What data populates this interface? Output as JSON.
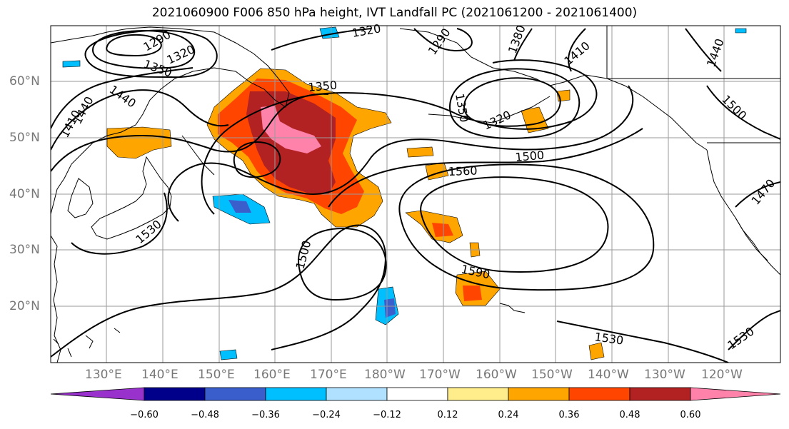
{
  "title": "2021060900 F006 850 hPa height, IVT Landfall PC (2021061200 - 2021061400)",
  "lat_labels": [
    "60°N",
    "50°N",
    "40°N",
    "30°N",
    "20°N"
  ],
  "lon_labels": [
    "130°E",
    "140°E",
    "150°E",
    "160°E",
    "170°E",
    "180°W",
    "170°W",
    "160°W",
    "150°W",
    "140°W",
    "130°W",
    "120°W"
  ],
  "contour_labels": [
    "1290",
    "1320",
    "1350",
    "1440",
    "1410",
    "1440",
    "1350",
    "1320",
    "1290",
    "1380",
    "1410",
    "1440",
    "1350",
    "1320",
    "1500",
    "1500",
    "1560",
    "1590",
    "1500",
    "1530",
    "1530",
    "1530",
    "1470"
  ],
  "colorbar": {
    "ticks": [
      "−0.60",
      "−0.48",
      "−0.36",
      "−0.24",
      "−0.12",
      "0.12",
      "0.24",
      "0.36",
      "0.48",
      "0.60"
    ],
    "colors": [
      "#9932cc",
      "#00008b",
      "#3a5fcd",
      "#00bfff",
      "#b0e2ff",
      "#ffffff",
      "#ffec8b",
      "#ffa500",
      "#ff4500",
      "#b22222",
      "#ff82ab"
    ]
  },
  "colors": {
    "coast": "#000000",
    "grid": "#9a9a9a",
    "contour": "#000000"
  }
}
